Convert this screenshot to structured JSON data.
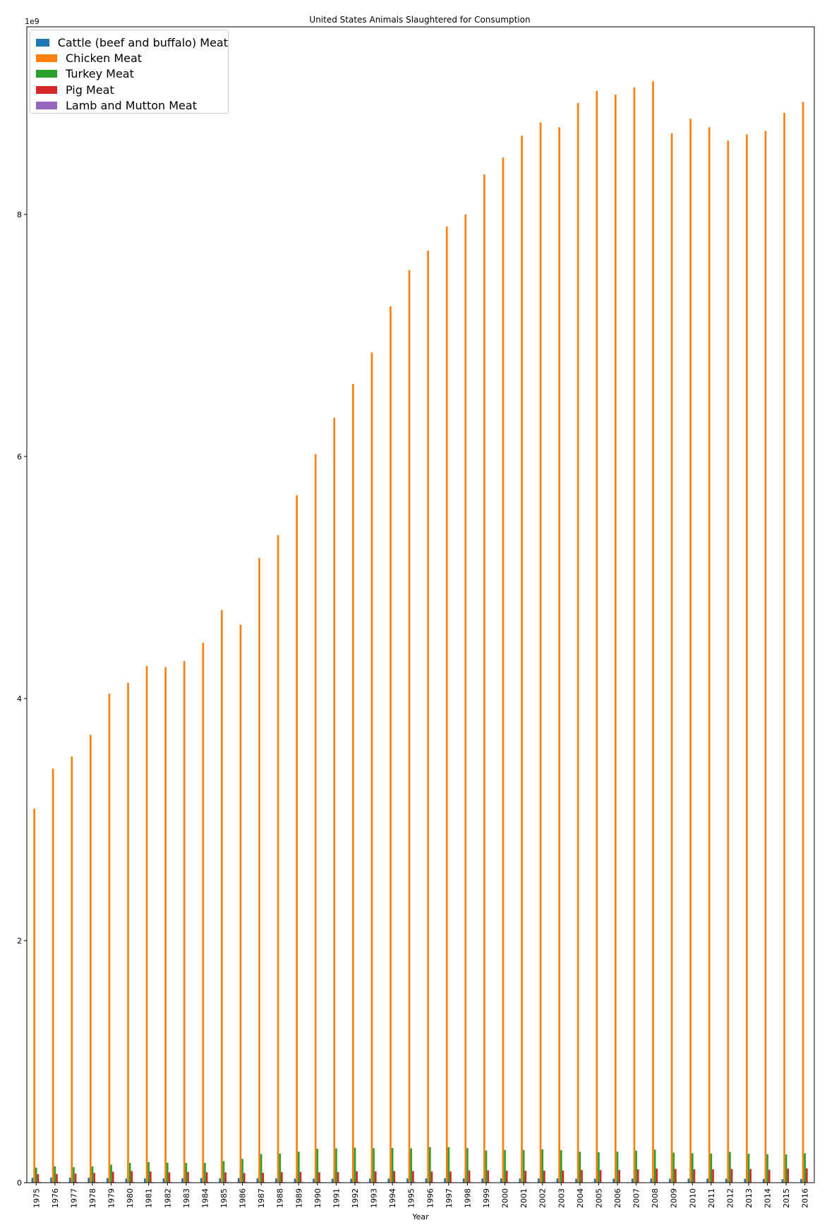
{
  "chart_data": {
    "type": "bar",
    "title": "United States Animals Slaughtered for Consumption",
    "xlabel": "Year",
    "ylabel": "",
    "y_scale_label": "1e9",
    "ylim": [
      0,
      9.55
    ],
    "yticks": [
      0,
      2,
      4,
      6,
      8
    ],
    "grid": false,
    "legend_position": "upper-left",
    "categories": [
      "1975",
      "1976",
      "1977",
      "1978",
      "1979",
      "1980",
      "1981",
      "1982",
      "1983",
      "1984",
      "1985",
      "1986",
      "1987",
      "1988",
      "1989",
      "1990",
      "1991",
      "1992",
      "1993",
      "1994",
      "1995",
      "1996",
      "1997",
      "1998",
      "1999",
      "2000",
      "2001",
      "2002",
      "2003",
      "2004",
      "2005",
      "2006",
      "2007",
      "2008",
      "2009",
      "2010",
      "2011",
      "2012",
      "2013",
      "2014",
      "2015",
      "2016"
    ],
    "series": [
      {
        "name": "Cattle (beef and buffalo) Meat",
        "color": "#1f77b4",
        "values": [
          0.04,
          0.043,
          0.042,
          0.041,
          0.038,
          0.034,
          0.035,
          0.036,
          0.037,
          0.038,
          0.037,
          0.038,
          0.036,
          0.035,
          0.034,
          0.033,
          0.033,
          0.033,
          0.034,
          0.034,
          0.035,
          0.036,
          0.037,
          0.035,
          0.036,
          0.036,
          0.035,
          0.035,
          0.035,
          0.033,
          0.033,
          0.034,
          0.034,
          0.034,
          0.033,
          0.034,
          0.034,
          0.033,
          0.032,
          0.031,
          0.029,
          0.031
        ]
      },
      {
        "name": "Chicken Meat",
        "color": "#ff7f0e",
        "values": [
          3.09,
          3.42,
          3.52,
          3.7,
          4.04,
          4.13,
          4.27,
          4.26,
          4.31,
          4.46,
          4.73,
          4.61,
          5.16,
          5.35,
          5.68,
          6.02,
          6.32,
          6.6,
          6.86,
          7.24,
          7.54,
          7.7,
          7.9,
          8.0,
          8.33,
          8.47,
          8.65,
          8.76,
          8.72,
          8.92,
          9.02,
          8.99,
          9.05,
          9.1,
          8.67,
          8.79,
          8.72,
          8.61,
          8.66,
          8.69,
          8.84,
          8.93
        ]
      },
      {
        "name": "Turkey Meat",
        "color": "#2ca02c",
        "values": [
          0.124,
          0.134,
          0.128,
          0.134,
          0.149,
          0.163,
          0.169,
          0.165,
          0.163,
          0.163,
          0.178,
          0.196,
          0.236,
          0.241,
          0.256,
          0.28,
          0.283,
          0.289,
          0.285,
          0.286,
          0.283,
          0.294,
          0.293,
          0.285,
          0.266,
          0.27,
          0.27,
          0.275,
          0.268,
          0.255,
          0.251,
          0.256,
          0.265,
          0.273,
          0.248,
          0.243,
          0.24,
          0.254,
          0.239,
          0.235,
          0.233,
          0.243
        ]
      },
      {
        "name": "Pig Meat",
        "color": "#d62728",
        "values": [
          0.07,
          0.072,
          0.075,
          0.08,
          0.09,
          0.096,
          0.092,
          0.085,
          0.088,
          0.085,
          0.085,
          0.079,
          0.081,
          0.088,
          0.089,
          0.085,
          0.088,
          0.094,
          0.093,
          0.096,
          0.096,
          0.092,
          0.092,
          0.101,
          0.102,
          0.098,
          0.098,
          0.099,
          0.1,
          0.104,
          0.104,
          0.105,
          0.11,
          0.116,
          0.113,
          0.11,
          0.11,
          0.113,
          0.112,
          0.107,
          0.116,
          0.118
        ]
      },
      {
        "name": "Lamb and Mutton Meat",
        "color": "#9467bd",
        "values": [
          0.006,
          0.005,
          0.005,
          0.005,
          0.005,
          0.005,
          0.005,
          0.005,
          0.005,
          0.005,
          0.005,
          0.005,
          0.005,
          0.005,
          0.005,
          0.005,
          0.005,
          0.005,
          0.005,
          0.005,
          0.005,
          0.004,
          0.004,
          0.004,
          0.004,
          0.004,
          0.004,
          0.004,
          0.003,
          0.003,
          0.003,
          0.003,
          0.003,
          0.003,
          0.003,
          0.003,
          0.003,
          0.003,
          0.003,
          0.003,
          0.003,
          0.003
        ]
      }
    ]
  }
}
